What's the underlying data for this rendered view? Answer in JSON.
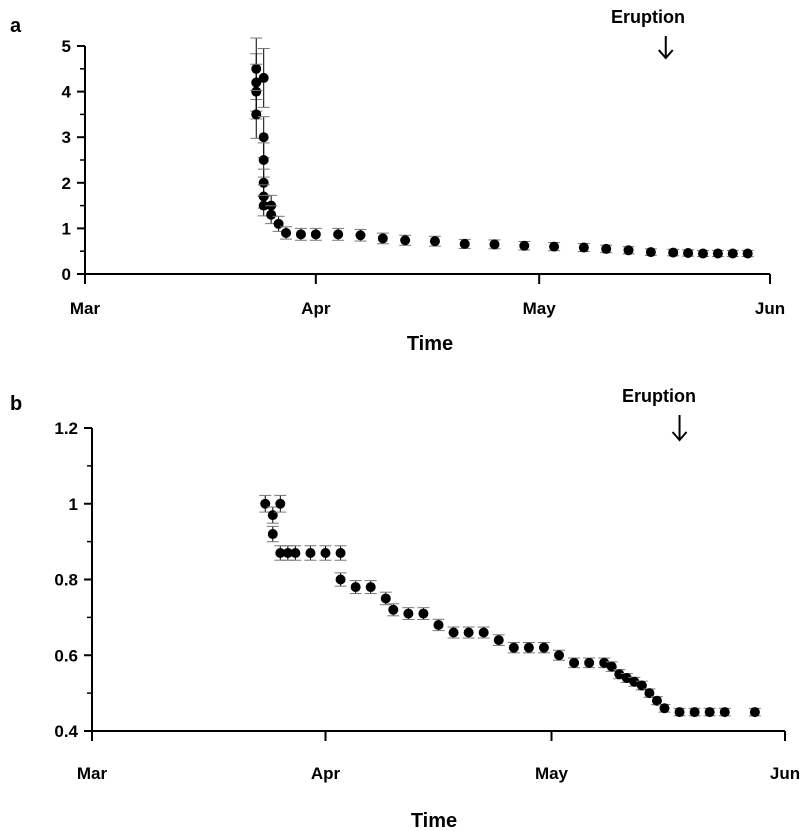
{
  "chart_data": [
    {
      "panel": "a",
      "type": "scatter",
      "title": "",
      "xlabel": "Time",
      "ylabel": "",
      "x_ticks": [
        "Mar",
        "Apr",
        "May",
        "Jun"
      ],
      "x_tick_days": [
        0,
        31,
        61,
        92
      ],
      "ylim": [
        0,
        5
      ],
      "y_ticks": [
        "0",
        "1",
        "2",
        "3",
        "4",
        "5"
      ],
      "grid": false,
      "annotation": {
        "text": "Eruption",
        "day": 78
      },
      "x": [
        "2000-03-24",
        "2000-03-24",
        "2000-03-24",
        "2000-03-24",
        "2000-03-25",
        "2000-03-25",
        "2000-03-25",
        "2000-03-25",
        "2000-03-25",
        "2000-03-25",
        "2000-03-26",
        "2000-03-26",
        "2000-03-27",
        "2000-03-28",
        "2000-03-30",
        "2000-04-01",
        "2000-04-04",
        "2000-04-07",
        "2000-04-10",
        "2000-04-13",
        "2000-04-17",
        "2000-04-21",
        "2000-04-25",
        "2000-04-29",
        "2000-05-03",
        "2000-05-07",
        "2000-05-10",
        "2000-05-13",
        "2000-05-16",
        "2000-05-19",
        "2000-05-21",
        "2000-05-23",
        "2000-05-25",
        "2000-05-27",
        "2000-05-29"
      ],
      "y": [
        4.2,
        4.5,
        4.0,
        3.5,
        4.3,
        3.0,
        2.5,
        2.0,
        1.7,
        1.5,
        1.5,
        1.3,
        1.1,
        0.9,
        0.87,
        0.87,
        0.87,
        0.85,
        0.78,
        0.74,
        0.72,
        0.66,
        0.65,
        0.62,
        0.6,
        0.58,
        0.55,
        0.52,
        0.48,
        0.47,
        0.46,
        0.45,
        0.45,
        0.45,
        0.45
      ],
      "series": [
        {
          "values": [
            4.2,
            4.5,
            4.0,
            3.5,
            4.3,
            3.0,
            2.5,
            2.0,
            1.7,
            1.5,
            1.5,
            1.3,
            1.1,
            0.9,
            0.87,
            0.87,
            0.87,
            0.85,
            0.78,
            0.74,
            0.72,
            0.66,
            0.65,
            0.62,
            0.6,
            0.58,
            0.55,
            0.52,
            0.48,
            0.47,
            0.46,
            0.45,
            0.45,
            0.45,
            0.45
          ]
        }
      ]
    },
    {
      "panel": "b",
      "type": "scatter",
      "title": "",
      "xlabel": "Time",
      "ylabel": "",
      "x_ticks": [
        "Mar",
        "Apr",
        "May",
        "Jun"
      ],
      "x_tick_days": [
        0,
        31,
        61,
        92
      ],
      "ylim": [
        0.4,
        1.2
      ],
      "y_ticks": [
        "0.4",
        "0.6",
        "0.8",
        "1",
        "1.2"
      ],
      "grid": false,
      "annotation": {
        "text": "Eruption",
        "day": 78
      },
      "x": [
        "2000-03-24",
        "2000-03-25",
        "2000-03-25",
        "2000-03-26",
        "2000-03-26",
        "2000-03-27",
        "2000-03-28",
        "2000-03-30",
        "2000-04-01",
        "2000-04-03",
        "2000-04-03",
        "2000-04-05",
        "2000-04-07",
        "2000-04-09",
        "2000-04-10",
        "2000-04-12",
        "2000-04-14",
        "2000-04-16",
        "2000-04-18",
        "2000-04-20",
        "2000-04-22",
        "2000-04-24",
        "2000-04-26",
        "2000-04-28",
        "2000-04-30",
        "2000-05-02",
        "2000-05-04",
        "2000-05-06",
        "2000-05-08",
        "2000-05-09",
        "2000-05-10",
        "2000-05-11",
        "2000-05-12",
        "2000-05-13",
        "2000-05-14",
        "2000-05-15",
        "2000-05-16",
        "2000-05-18",
        "2000-05-20",
        "2000-05-22",
        "2000-05-24",
        "2000-05-28"
      ],
      "y": [
        1.0,
        0.97,
        0.92,
        1.0,
        0.87,
        0.87,
        0.87,
        0.87,
        0.87,
        0.87,
        0.8,
        0.78,
        0.78,
        0.75,
        0.72,
        0.71,
        0.71,
        0.68,
        0.66,
        0.66,
        0.66,
        0.64,
        0.62,
        0.62,
        0.62,
        0.6,
        0.58,
        0.58,
        0.58,
        0.57,
        0.55,
        0.54,
        0.53,
        0.52,
        0.5,
        0.48,
        0.46,
        0.45,
        0.45,
        0.45,
        0.45,
        0.45
      ],
      "series": [
        {
          "values": [
            1.0,
            0.97,
            0.92,
            1.0,
            0.87,
            0.87,
            0.87,
            0.87,
            0.87,
            0.87,
            0.8,
            0.78,
            0.78,
            0.75,
            0.72,
            0.71,
            0.71,
            0.68,
            0.66,
            0.66,
            0.66,
            0.64,
            0.62,
            0.62,
            0.62,
            0.6,
            0.58,
            0.58,
            0.58,
            0.57,
            0.55,
            0.54,
            0.53,
            0.52,
            0.5,
            0.48,
            0.46,
            0.45,
            0.45,
            0.45,
            0.45,
            0.45
          ]
        }
      ]
    }
  ]
}
